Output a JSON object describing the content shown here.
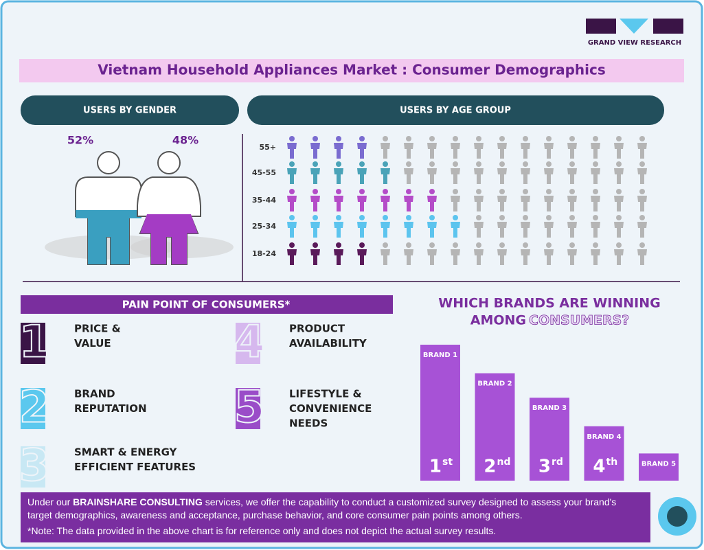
{
  "logo": {
    "text": "GRAND VIEW RESEARCH"
  },
  "title": "Vietnam Household Appliances Market : Consumer Demographics",
  "gender": {
    "heading": "USERS BY GENDER",
    "male_label": "52%",
    "female_label": "48%",
    "male_color": "#3a9fc0",
    "female_color": "#a43cc4"
  },
  "age": {
    "heading": "USERS BY AGE GROUP",
    "gray": "#b5b5b5",
    "rows": [
      {
        "label": "55+",
        "highlighted": 4,
        "total": 16,
        "color": "#7a6cd0"
      },
      {
        "label": "45-55",
        "highlighted": 5,
        "total": 16,
        "color": "#4aa3b8"
      },
      {
        "label": "35-44",
        "highlighted": 7,
        "total": 16,
        "color": "#b44cc8"
      },
      {
        "label": "25-34",
        "highlighted": 8,
        "total": 16,
        "color": "#5cc4ee"
      },
      {
        "label": "18-24",
        "highlighted": 4,
        "total": 16,
        "color": "#5a1a5a"
      }
    ]
  },
  "pain": {
    "heading": "PAIN POINT OF CONSUMERS*",
    "items": [
      {
        "number": "1",
        "color": "#3a1446",
        "lines": [
          "PRICE &",
          "VALUE"
        ]
      },
      {
        "number": "2",
        "color": "#5bc8ee",
        "lines": [
          "BRAND",
          "REPUTATION"
        ]
      },
      {
        "number": "3",
        "color": "#c8e8f4",
        "lines": [
          "SMART & ENERGY",
          "EFFICIENT FEATURES"
        ]
      },
      {
        "number": "4",
        "color": "#d6b8ee",
        "lines": [
          "PRODUCT",
          "AVAILABILITY"
        ]
      },
      {
        "number": "5",
        "color": "#9a4cc8",
        "lines": [
          "LIFESTYLE &",
          "CONVENIENCE",
          "NEEDS"
        ]
      }
    ]
  },
  "brands": {
    "line1": "WHICH BRANDS ARE WINNING",
    "line2_start": "AMONG",
    "line2_highlight": "CONSUMERS?",
    "color": "#a752d6",
    "bars": [
      {
        "name": "BRAND 1",
        "value": 100,
        "rank": "1",
        "suffix": "st"
      },
      {
        "name": "BRAND 2",
        "value": 79,
        "rank": "2",
        "suffix": "nd"
      },
      {
        "name": "BRAND 3",
        "value": 61,
        "rank": "3",
        "suffix": "rd"
      },
      {
        "name": "BRAND 4",
        "value": 40,
        "rank": "4",
        "suffix": "th"
      },
      {
        "name": "BRAND 5",
        "value": 20
      }
    ]
  },
  "footer": {
    "before": "Under our",
    "bold": "BRAINSHARE CONSULTING",
    "after": "services, we offer the capability to conduct a customized survey designed to assess your brand's target demographics, awareness and acceptance, purchase behavior, and core consumer pain points among others.",
    "note": "*Note: The data provided in the above chart is for reference only and does not depict the actual survey results."
  }
}
